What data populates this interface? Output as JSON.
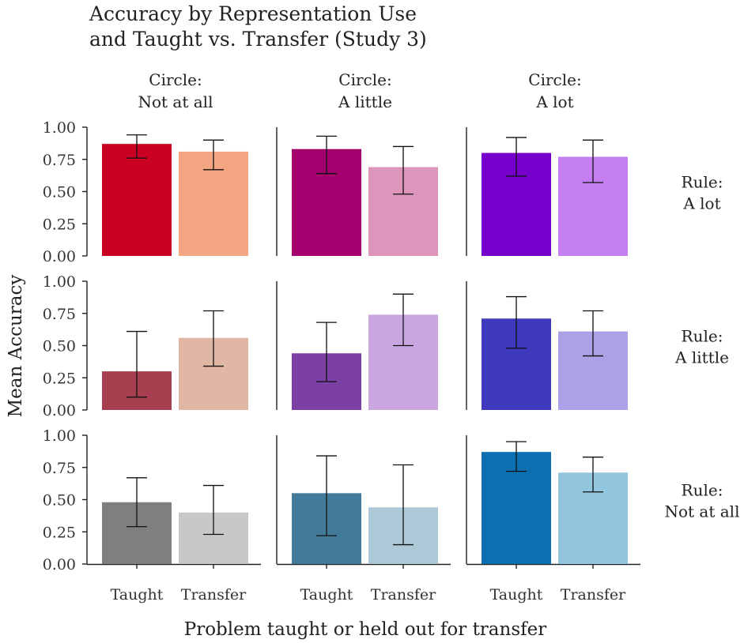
{
  "chart_data": {
    "type": "bar",
    "title_lines": [
      "Accuracy by Representation Use",
      "and Taught vs. Transfer (Study 3)"
    ],
    "xlabel": "Problem taught or held out for transfer",
    "ylabel": "Mean Accuracy",
    "categories": [
      "Taught",
      "Transfer"
    ],
    "ylim": [
      0,
      1
    ],
    "yticks": [
      0,
      0.25,
      0.5,
      0.75,
      1.0
    ],
    "ytick_labels": [
      "0.00",
      "0.25",
      "0.50",
      "0.75",
      "1.00"
    ],
    "column_facet": {
      "name": "Circle",
      "levels": [
        {
          "line1": "Circle:",
          "line2": "Not at all"
        },
        {
          "line1": "Circle:",
          "line2": "A little"
        },
        {
          "line1": "Circle:",
          "line2": "A lot"
        }
      ]
    },
    "row_facet": {
      "name": "Rule",
      "levels": [
        {
          "line1": "Rule:",
          "line2": "A lot"
        },
        {
          "line1": "Rule:",
          "line2": "A little"
        },
        {
          "line1": "Rule:",
          "line2": "Not at all"
        }
      ]
    },
    "panels": [
      {
        "row": 0,
        "col": 0,
        "bars": [
          {
            "category": "Taught",
            "value": 0.87,
            "ci": [
              0.76,
              0.94
            ],
            "color": "#c90022"
          },
          {
            "category": "Transfer",
            "value": 0.81,
            "ci": [
              0.67,
              0.9
            ],
            "color": "#f4a582"
          }
        ]
      },
      {
        "row": 0,
        "col": 1,
        "bars": [
          {
            "category": "Taught",
            "value": 0.83,
            "ci": [
              0.64,
              0.93
            ],
            "color": "#a3006e"
          },
          {
            "category": "Transfer",
            "value": 0.69,
            "ci": [
              0.48,
              0.85
            ],
            "color": "#de95bb"
          }
        ]
      },
      {
        "row": 0,
        "col": 2,
        "bars": [
          {
            "category": "Taught",
            "value": 0.8,
            "ci": [
              0.62,
              0.92
            ],
            "color": "#7700cc"
          },
          {
            "category": "Transfer",
            "value": 0.77,
            "ci": [
              0.57,
              0.9
            ],
            "color": "#c47ef0"
          }
        ]
      },
      {
        "row": 1,
        "col": 0,
        "bars": [
          {
            "category": "Taught",
            "value": 0.3,
            "ci": [
              0.1,
              0.61
            ],
            "color": "#a83f50"
          },
          {
            "category": "Transfer",
            "value": 0.56,
            "ci": [
              0.34,
              0.77
            ],
            "color": "#e0b7a4"
          }
        ]
      },
      {
        "row": 1,
        "col": 1,
        "bars": [
          {
            "category": "Taught",
            "value": 0.44,
            "ci": [
              0.22,
              0.68
            ],
            "color": "#7c3fa3"
          },
          {
            "category": "Transfer",
            "value": 0.74,
            "ci": [
              0.5,
              0.9
            ],
            "color": "#c9a6df"
          }
        ]
      },
      {
        "row": 1,
        "col": 2,
        "bars": [
          {
            "category": "Taught",
            "value": 0.71,
            "ci": [
              0.48,
              0.88
            ],
            "color": "#3f3abd"
          },
          {
            "category": "Transfer",
            "value": 0.61,
            "ci": [
              0.42,
              0.77
            ],
            "color": "#aaa1e6"
          }
        ]
      },
      {
        "row": 2,
        "col": 0,
        "bars": [
          {
            "category": "Taught",
            "value": 0.48,
            "ci": [
              0.29,
              0.67
            ],
            "color": "#7f7f7f"
          },
          {
            "category": "Transfer",
            "value": 0.4,
            "ci": [
              0.23,
              0.61
            ],
            "color": "#c8c8c8"
          }
        ]
      },
      {
        "row": 2,
        "col": 1,
        "bars": [
          {
            "category": "Taught",
            "value": 0.55,
            "ci": [
              0.22,
              0.84
            ],
            "color": "#437999"
          },
          {
            "category": "Transfer",
            "value": 0.44,
            "ci": [
              0.15,
              0.77
            ],
            "color": "#adc8d6"
          }
        ]
      },
      {
        "row": 2,
        "col": 2,
        "bars": [
          {
            "category": "Taught",
            "value": 0.87,
            "ci": [
              0.72,
              0.95
            ],
            "color": "#0b6fb1"
          },
          {
            "category": "Transfer",
            "value": 0.71,
            "ci": [
              0.56,
              0.83
            ],
            "color": "#92c5de"
          }
        ]
      }
    ]
  }
}
